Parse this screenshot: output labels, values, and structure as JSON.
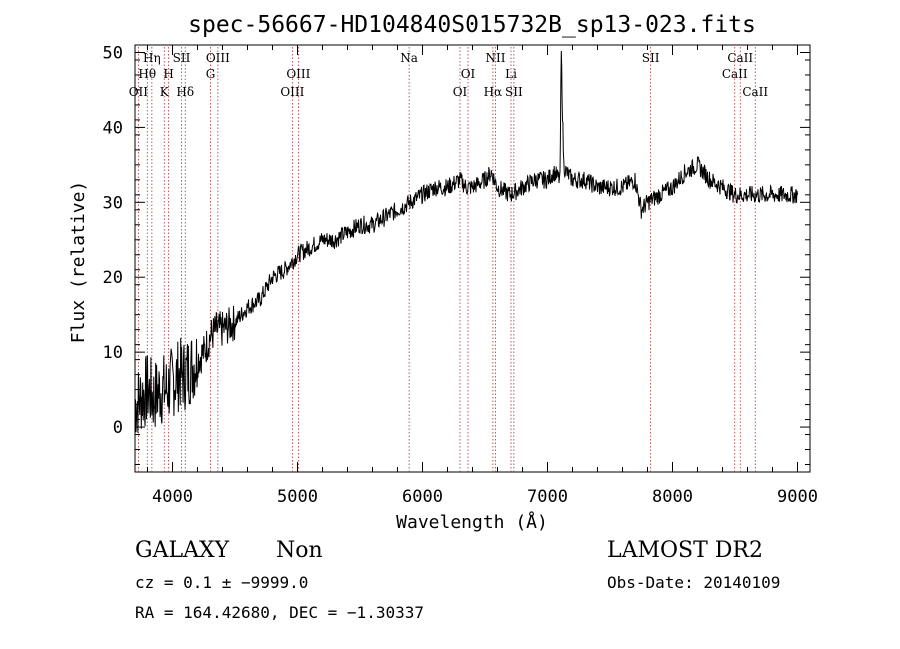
{
  "chart_data": {
    "type": "line",
    "title": "spec-56667-HD104840S015732B_sp13-023.fits",
    "xlabel": "Wavelength (Å)",
    "ylabel": "Flux (relative)",
    "xlim": [
      3700,
      9100
    ],
    "ylim": [
      -6,
      51
    ],
    "xticks": [
      4000,
      5000,
      6000,
      7000,
      8000,
      9000
    ],
    "yticks": [
      0,
      10,
      20,
      30,
      40,
      50
    ],
    "xtick_labels": [
      "4000",
      "5000",
      "6000",
      "7000",
      "8000",
      "9000"
    ],
    "ytick_labels": [
      "0",
      "10",
      "20",
      "30",
      "40",
      "50"
    ],
    "grid": false,
    "series": [
      {
        "x": [
          3700,
          3750,
          3800,
          3850,
          3900,
          3950,
          4000,
          4050,
          4100,
          4150,
          4200,
          4250,
          4300,
          4350,
          4400,
          4500,
          4600,
          4700,
          4800,
          4900,
          5000,
          5100,
          5200,
          5300,
          5400,
          5500,
          5600,
          5700,
          5800,
          5900,
          6000,
          6100,
          6200,
          6300,
          6350,
          6400,
          6500,
          6550,
          6600,
          6700,
          6800,
          6900,
          7000,
          7050,
          7100,
          7110,
          7120,
          7130,
          7150,
          7200,
          7300,
          7400,
          7500,
          7600,
          7700,
          7750,
          7800,
          7900,
          8000,
          8100,
          8200,
          8300,
          8400,
          8500,
          8600,
          8700,
          8800,
          8900,
          9000
        ],
        "y": [
          3,
          4,
          5,
          4,
          5,
          5,
          6,
          7,
          7,
          8,
          9,
          10,
          12,
          13,
          13,
          14,
          16,
          17,
          20,
          21,
          23,
          24,
          25,
          25,
          26,
          27,
          27,
          28,
          29,
          30,
          31,
          32,
          32,
          33,
          32,
          32,
          33,
          34,
          32,
          31,
          32,
          33,
          33,
          34,
          33,
          50,
          42,
          35,
          34,
          33,
          33,
          32,
          32,
          32,
          33,
          29,
          30,
          31,
          32,
          34,
          35,
          33,
          32,
          31,
          31,
          31,
          31,
          31,
          31
        ]
      }
    ],
    "line_annotations": [
      {
        "label": "Hη",
        "x": 3835,
        "row": 0
      },
      {
        "label": "Hθ",
        "x": 3798,
        "row": 1
      },
      {
        "label": "OII",
        "x": 3727,
        "row": 2
      },
      {
        "label": "SII",
        "x": 4072,
        "row": 0
      },
      {
        "label": "H",
        "x": 3969,
        "row": 1
      },
      {
        "label": "K",
        "x": 3934,
        "row": 2
      },
      {
        "label": "Hδ",
        "x": 4102,
        "row": 2
      },
      {
        "label": "OIII",
        "x": 4363,
        "row": 0
      },
      {
        "label": "G",
        "x": 4304,
        "row": 1
      },
      {
        "label": "OIII",
        "x": 5007,
        "row": 1
      },
      {
        "label": "OIII",
        "x": 4959,
        "row": 2
      },
      {
        "label": "Na",
        "x": 5893,
        "row": 0
      },
      {
        "label": "OI",
        "x": 6364,
        "row": 1
      },
      {
        "label": "OI",
        "x": 6300,
        "row": 2
      },
      {
        "label": "NII",
        "x": 6584,
        "row": 0
      },
      {
        "label": "Hα",
        "x": 6563,
        "row": 2
      },
      {
        "label": "Li",
        "x": 6708,
        "row": 1
      },
      {
        "label": "SII",
        "x": 6731,
        "row": 2
      },
      {
        "label": "SII",
        "x": 7825,
        "row": 0
      },
      {
        "label": "CaII",
        "x": 8542,
        "row": 0
      },
      {
        "label": "CaII",
        "x": 8498,
        "row": 1
      },
      {
        "label": "CaII",
        "x": 8662,
        "row": 2
      }
    ]
  },
  "footer": {
    "class_label": "GALAXY",
    "subclass_label": "Non",
    "survey_label": "LAMOST DR2",
    "cz_line": "cz = 0.1 ± −9999.0",
    "obs_date_line": "Obs-Date: 20140109",
    "radec_line": "RA = 164.42680, DEC =  −1.30337"
  }
}
